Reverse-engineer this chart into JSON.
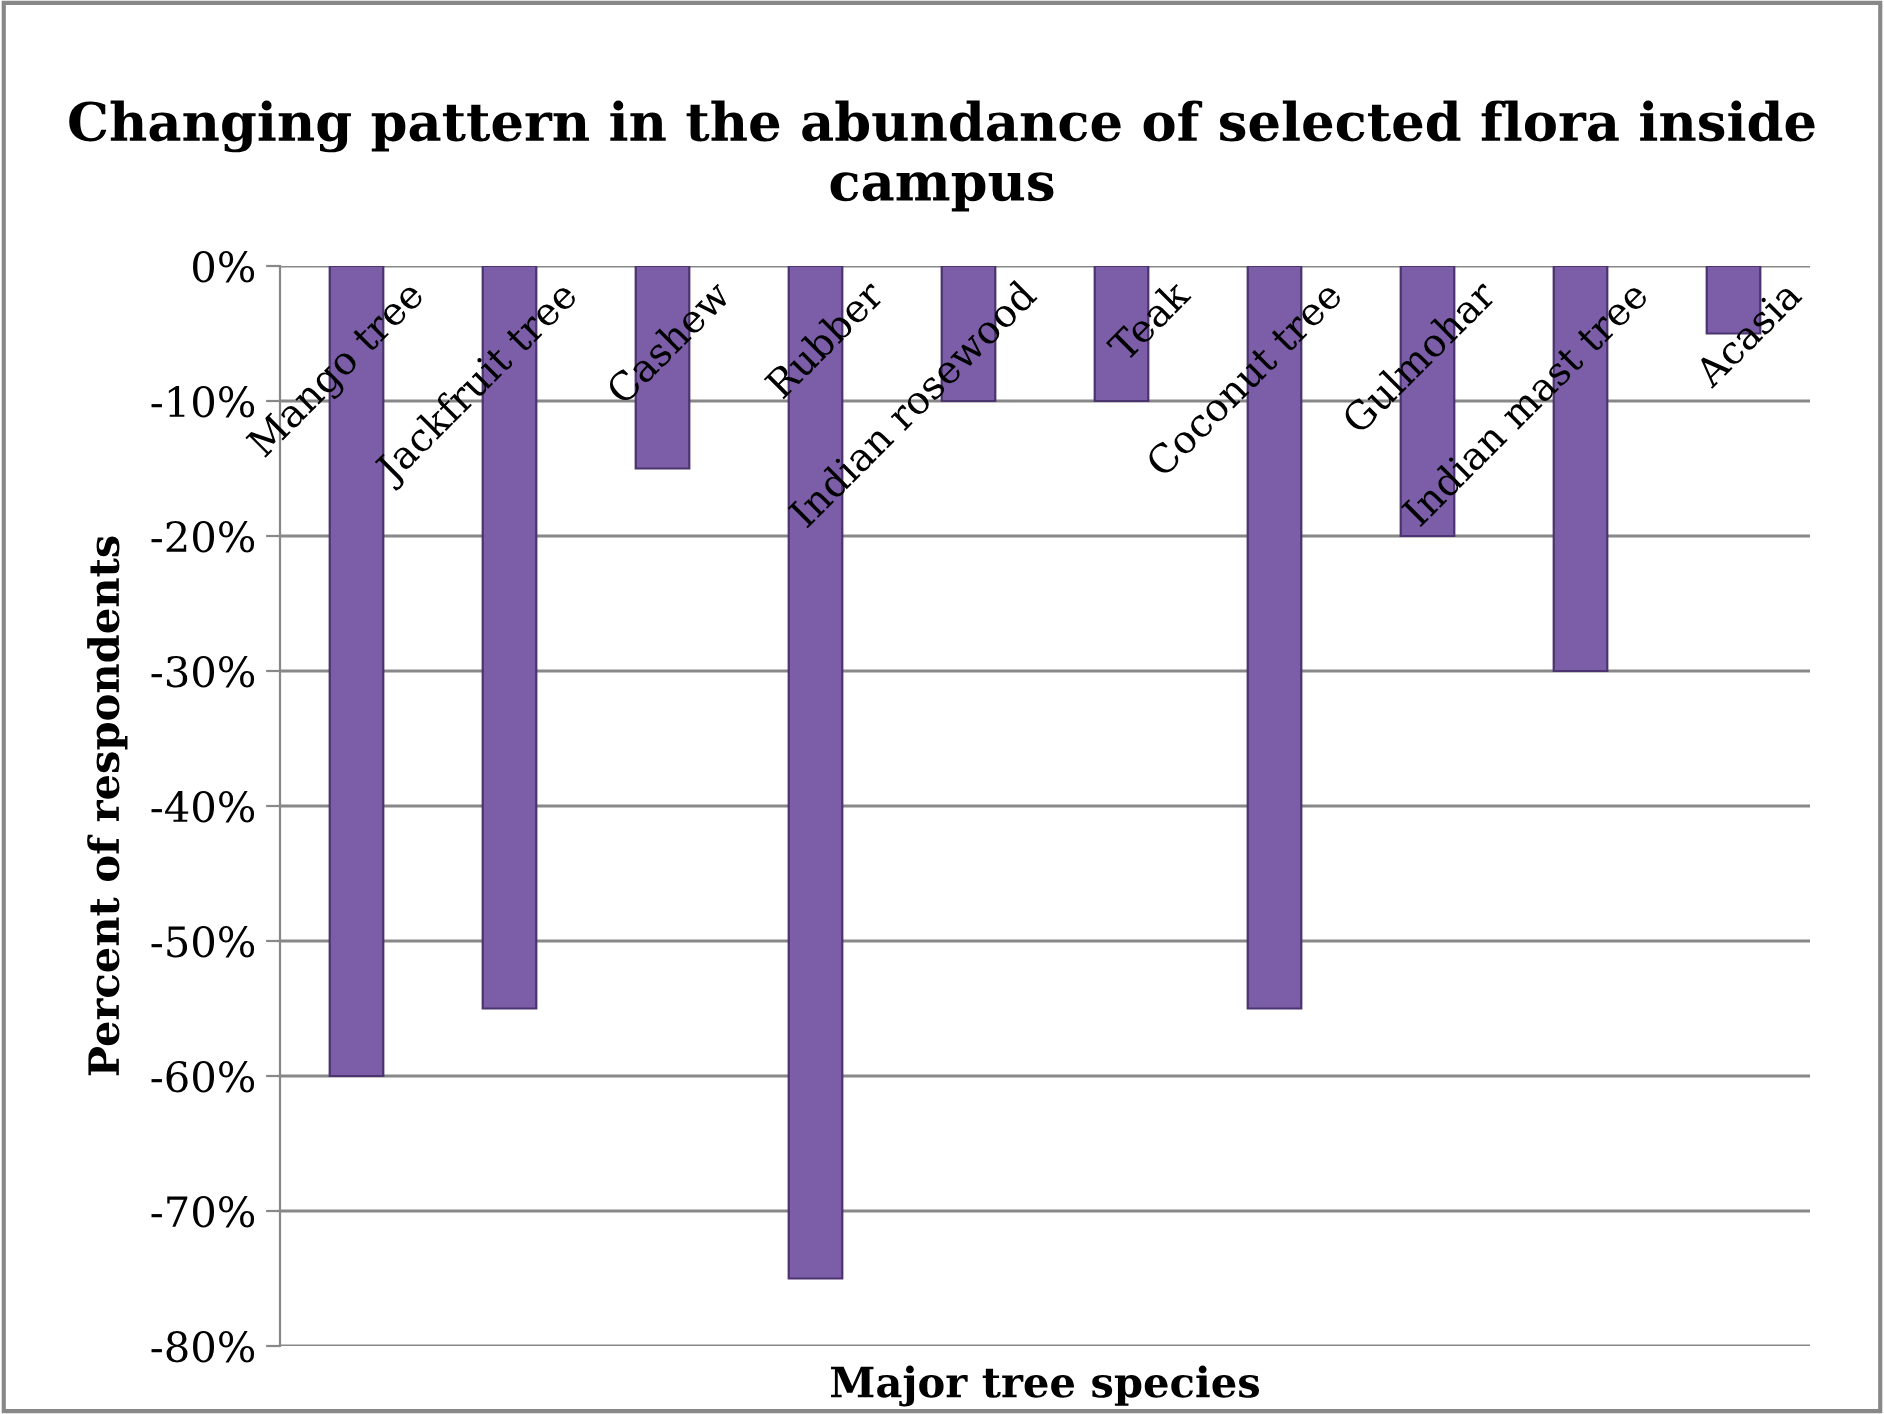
{
  "chart_data": {
    "type": "bar",
    "title": "Changing pattern in the abundance of selected flora inside campus",
    "xlabel": "Major tree species",
    "ylabel": "Percent of respondents",
    "categories": [
      "Mango tree",
      "Jackfruit tree",
      "Cashew",
      "Rubber",
      "Indian rosewood",
      "Teak",
      "Coconut tree",
      "Gulmohar",
      "Indian mast tree",
      "Acasia"
    ],
    "values": [
      -60,
      -55,
      -15,
      -75,
      -10,
      -10,
      -55,
      -20,
      -30,
      -5
    ],
    "color": "#7b5ea7",
    "ylim": [
      -80,
      0
    ],
    "yticks": [
      {
        "value": 0,
        "label": "0%"
      },
      {
        "value": -10,
        "label": "-10%"
      },
      {
        "value": -20,
        "label": "-20%"
      },
      {
        "value": -30,
        "label": "-30%"
      },
      {
        "value": -40,
        "label": "-40%"
      },
      {
        "value": -50,
        "label": "-50%"
      },
      {
        "value": -60,
        "label": "-60%"
      },
      {
        "value": -70,
        "label": "-70%"
      },
      {
        "value": -80,
        "label": "-80%"
      }
    ],
    "grid": "y"
  }
}
